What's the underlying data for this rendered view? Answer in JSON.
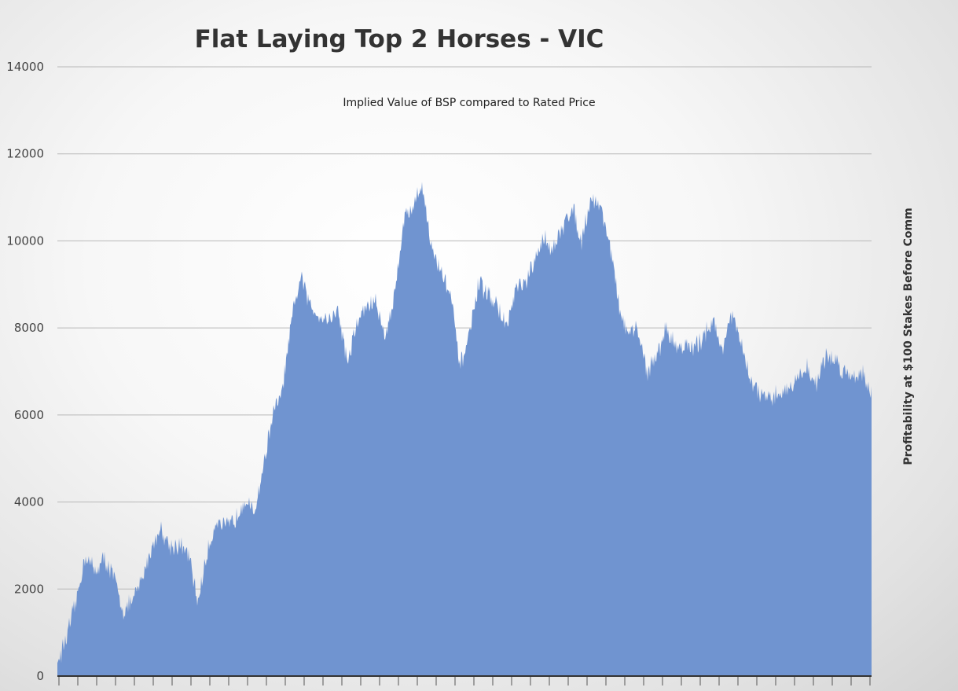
{
  "colors": {
    "area_fill": "#7094d0",
    "gridline": "#b8b8b8",
    "axis_line": "#333333"
  },
  "chart_data": {
    "type": "area",
    "title": "Flat Laying Top 2 Horses - VIC",
    "subtitle": "Implied Value of BSP compared to Rated Price",
    "ylabel": "Profitability at $100 Stakes Before Comm",
    "xlabel": "",
    "ylim": [
      0,
      14000
    ],
    "yticks": [
      "0",
      "2000",
      "4000",
      "6000",
      "8000",
      "10000",
      "12000",
      "14000"
    ],
    "grid": true,
    "legend": "none",
    "series": [
      {
        "values": [
          300,
          900,
          1700,
          2800,
          2400,
          2700,
          2300,
          1500,
          1700,
          2200,
          2900,
          3400,
          3000,
          3000,
          2800,
          1700,
          2800,
          3600,
          3400,
          3600,
          4100,
          3700,
          4800,
          6000,
          6500,
          8100,
          9200,
          8500,
          8300,
          8200,
          8400,
          7200,
          8100,
          8500,
          8600,
          7800,
          8700,
          10500,
          10800,
          11300,
          9800,
          9300,
          8800,
          7100,
          7800,
          9000,
          8800,
          8500,
          8000,
          8900,
          9000,
          9500,
          10100,
          9800,
          10300,
          10800,
          10000,
          11000,
          10800,
          10000,
          8500,
          7800,
          8000,
          7000,
          7300,
          8000,
          7600,
          7600,
          7500,
          7800,
          8200,
          7500,
          8300,
          7700,
          6800,
          6500,
          6300,
          6500,
          6600,
          6800,
          7100,
          6700,
          7300,
          7300,
          7000,
          6900,
          7000,
          6500
        ]
      }
    ]
  }
}
